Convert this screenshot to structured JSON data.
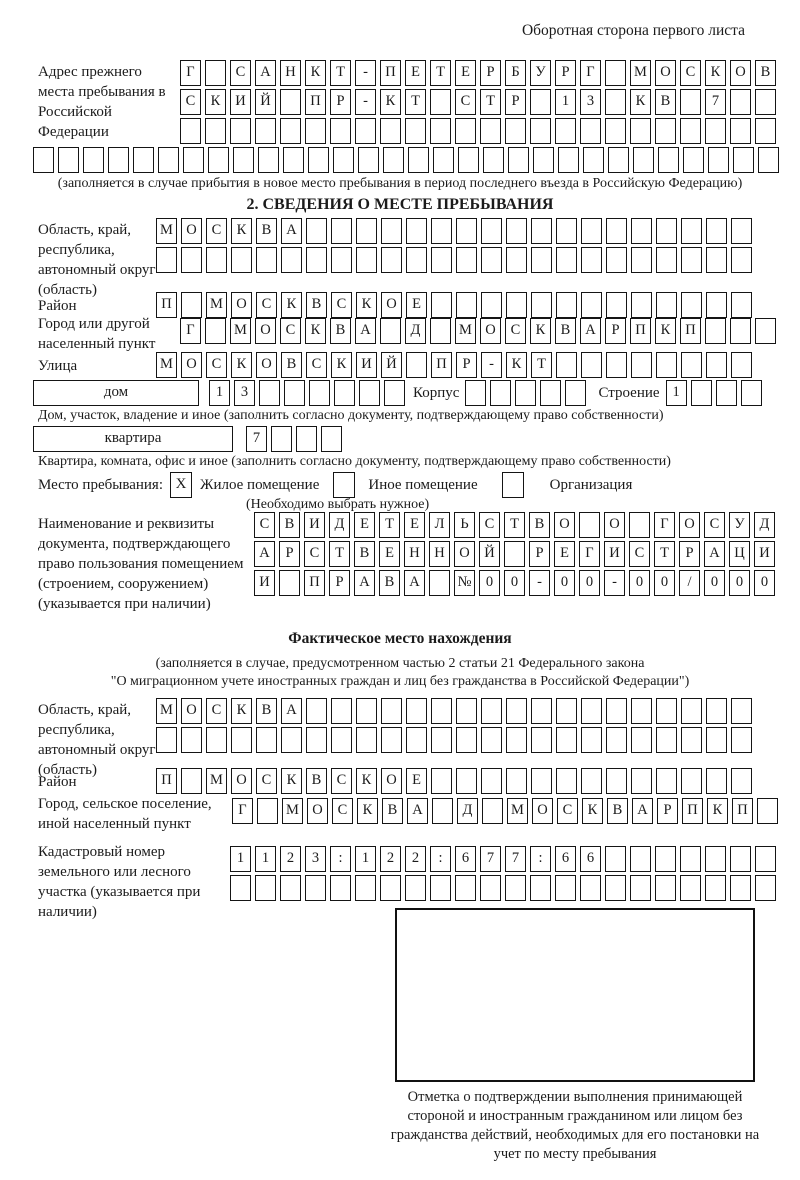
{
  "header": {
    "note": "Оборотная сторона первого листа"
  },
  "prev_address": {
    "label": "Адрес прежнего места пребывания в Российской Федерации",
    "rows": [
      {
        "n": 24,
        "v": "Г САНКТ-ПЕТЕРБУРГ МОСКОВ"
      },
      {
        "n": 24,
        "v": "СКИЙ ПР-КТ СТР 13 КВ 7"
      },
      {
        "n": 24,
        "v": ""
      }
    ],
    "full_row": {
      "n": 30,
      "v": ""
    },
    "caption": "(заполняется в случае прибытия в новое место пребывания в период последнего въезда в Российскую Федерацию)"
  },
  "section2": {
    "title": "2. СВЕДЕНИЯ О МЕСТЕ ПРЕБЫВАНИЯ",
    "oblast": {
      "label": "Область, край, республика, автономный округ (область)",
      "rows": [
        {
          "n": 24,
          "v": "МОСКВА"
        },
        {
          "n": 24,
          "v": ""
        }
      ]
    },
    "rayon": {
      "label": "Район",
      "row": {
        "n": 24,
        "v": "П МОСКВСКОЕ"
      }
    },
    "gorod": {
      "label": "Город или другой населенный пункт",
      "row": {
        "n": 24,
        "v": "Г МОСКВА Д МОСКВАРПКП"
      }
    },
    "ulitsa": {
      "label": "Улица",
      "row": {
        "n": 24,
        "v": "МОСКОВСКИЙ ПР-КТ"
      }
    },
    "dom": {
      "box_label": "дом",
      "cells": {
        "n": 8,
        "v": "13"
      },
      "korpus_label": "Корпус",
      "korpus_cells": {
        "n": 5,
        "v": ""
      },
      "stroenie_label": "Строение",
      "stroenie_cells": {
        "n": 4,
        "v": "1"
      },
      "caption": "Дом, участок, владение и иное (заполнить согласно документу, подтверждающему право собственности)"
    },
    "kvartira": {
      "box_label": "квартира",
      "cells": {
        "n": 4,
        "v": "7"
      },
      "caption": "Квартира, комната, офис и иное (заполнить согласно документу, подтверждающему право собственности)"
    },
    "mesto": {
      "label": "Место пребывания:",
      "options": [
        {
          "label": "Жилое помещение",
          "checked": "X"
        },
        {
          "label": "Иное помещение",
          "checked": ""
        },
        {
          "label": "Организация",
          "checked": ""
        }
      ],
      "note": "(Необходимо выбрать нужное)"
    },
    "doc": {
      "label": "Наименование и реквизиты документа, подтверждающего право пользования помещением (строением, сооружением) (указывается при наличии)",
      "rows": [
        {
          "n": 21,
          "v": "СВИДЕТЕЛЬСТВО О ГОСУД"
        },
        {
          "n": 21,
          "v": "АРСТВЕННОЙ РЕГИСТРАЦИ"
        },
        {
          "n": 21,
          "v": "И ПРАВА №00-00-00/000"
        }
      ]
    }
  },
  "fact": {
    "title": "Фактическое место нахождения",
    "caption1": "(заполняется в случае, предусмотренном частью 2 статьи 21 Федерального закона",
    "caption2": "\"О миграционном учете иностранных граждан и лиц без гражданства в Российской Федерации\")",
    "oblast": {
      "label": "Область, край, республика, автономный округ (область)",
      "rows": [
        {
          "n": 24,
          "v": "МОСКВА"
        },
        {
          "n": 24,
          "v": ""
        }
      ]
    },
    "rayon": {
      "label": "Район",
      "row": {
        "n": 24,
        "v": "П МОСКВСКОЕ"
      }
    },
    "gorod": {
      "label": "Город, сельское поселение, иной населенный пункт",
      "row": {
        "n": 22,
        "v": "Г МОСКВА Д МОСКВАРПКП"
      }
    },
    "kadastr": {
      "label": "Кадастровый номер земельного или лесного участка (указывается при наличии)",
      "rows": [
        {
          "n": 22,
          "v": "1123:122:677:66"
        },
        {
          "n": 22,
          "v": ""
        }
      ]
    }
  },
  "stamp": {
    "caption": "Отметка о подтверждении выполнения принимающей стороной и иностранным гражданином или лицом без гражданства действий, необходимых для его постановки на учет по месту пребывания"
  }
}
